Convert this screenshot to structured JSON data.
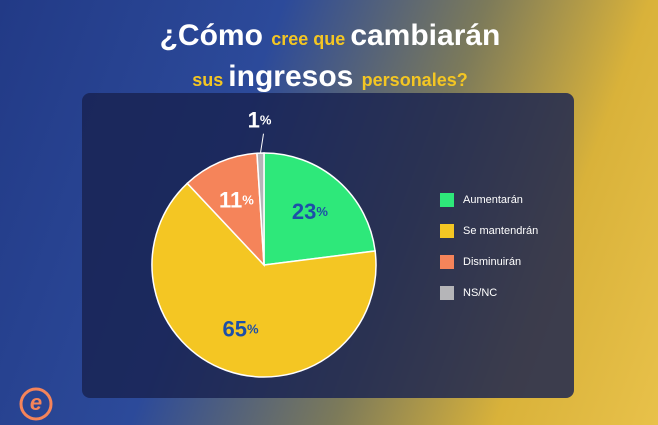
{
  "chart_data": {
    "type": "pie",
    "title": "¿Cómo cree que cambiarán sus ingresos personales?",
    "categories": [
      "Aumentarán",
      "Se mantendrán",
      "Disminuirán",
      "NS/NC"
    ],
    "values": [
      23,
      65,
      11,
      1
    ],
    "value_labels": [
      "23%",
      "65%",
      "11%",
      "1%"
    ],
    "colors": [
      "#2ee87a",
      "#f4c623",
      "#f5845a",
      "#b5b5b8"
    ],
    "legend": "right"
  }
}
